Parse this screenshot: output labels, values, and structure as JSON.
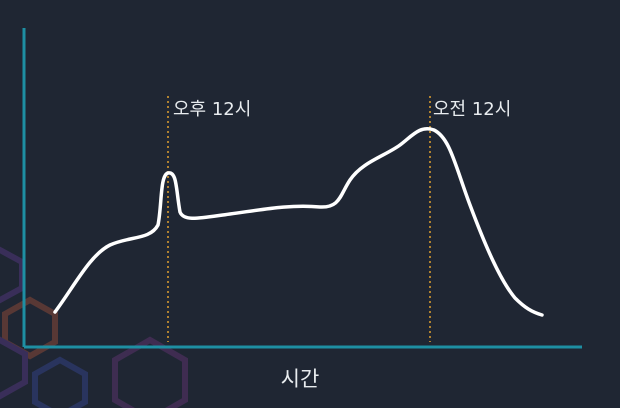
{
  "annotations": [
    "오후 12시",
    "오전 12시"
  ],
  "x_label": "시간"
}
